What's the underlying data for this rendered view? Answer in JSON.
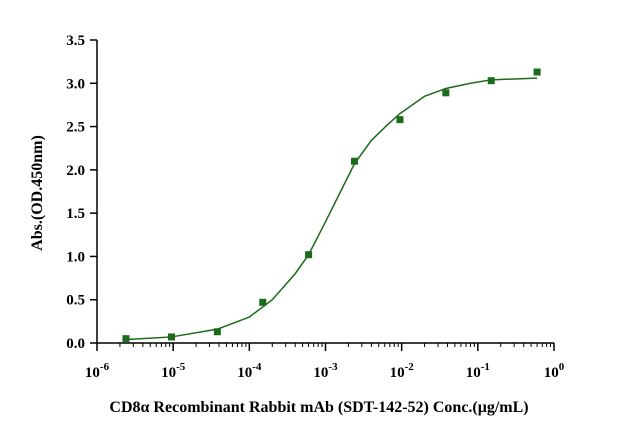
{
  "chart_data": {
    "type": "scatter",
    "xscale": "log",
    "xlabel": "CD8α Recombinant Rabbit mAb (SDT-142-52) Conc.(μg/mL)",
    "ylabel": "Abs.(OD.450nm)",
    "xlim": [
      1e-06,
      1
    ],
    "ylim": [
      0,
      3.5
    ],
    "x_ticks": [
      {
        "base": "10",
        "exp": "-6",
        "value": 1e-06
      },
      {
        "base": "10",
        "exp": "-5",
        "value": 1e-05
      },
      {
        "base": "10",
        "exp": "-4",
        "value": 0.0001
      },
      {
        "base": "10",
        "exp": "-3",
        "value": 0.001
      },
      {
        "base": "10",
        "exp": "-2",
        "value": 0.01
      },
      {
        "base": "10",
        "exp": "-1",
        "value": 0.1
      },
      {
        "base": "10",
        "exp": "0",
        "value": 1
      }
    ],
    "y_ticks": [
      "0.0",
      "0.5",
      "1.0",
      "1.5",
      "2.0",
      "2.5",
      "3.0",
      "3.5"
    ],
    "grid": false,
    "legend": "none",
    "color": "#1a6b1a",
    "points": [
      {
        "x": 2.4e-06,
        "y": 0.05
      },
      {
        "x": 9.5e-06,
        "y": 0.07
      },
      {
        "x": 3.8e-05,
        "y": 0.13
      },
      {
        "x": 0.00015,
        "y": 0.47
      },
      {
        "x": 0.0006,
        "y": 1.02
      },
      {
        "x": 0.0024,
        "y": 2.1
      },
      {
        "x": 0.0095,
        "y": 2.58
      },
      {
        "x": 0.038,
        "y": 2.89
      },
      {
        "x": 0.15,
        "y": 3.03
      },
      {
        "x": 0.6,
        "y": 3.13
      }
    ],
    "fit_curve": [
      {
        "x": 2.4e-06,
        "y": 0.04
      },
      {
        "x": 9.5e-06,
        "y": 0.07
      },
      {
        "x": 3.8e-05,
        "y": 0.16
      },
      {
        "x": 0.0001,
        "y": 0.3
      },
      {
        "x": 0.0002,
        "y": 0.5
      },
      {
        "x": 0.0004,
        "y": 0.8
      },
      {
        "x": 0.0006,
        "y": 1.02
      },
      {
        "x": 0.001,
        "y": 1.4
      },
      {
        "x": 0.0016,
        "y": 1.76
      },
      {
        "x": 0.0024,
        "y": 2.07
      },
      {
        "x": 0.004,
        "y": 2.34
      },
      {
        "x": 0.0065,
        "y": 2.52
      },
      {
        "x": 0.0095,
        "y": 2.65
      },
      {
        "x": 0.02,
        "y": 2.85
      },
      {
        "x": 0.038,
        "y": 2.94
      },
      {
        "x": 0.08,
        "y": 3.0
      },
      {
        "x": 0.15,
        "y": 3.04
      },
      {
        "x": 0.3,
        "y": 3.05
      },
      {
        "x": 0.6,
        "y": 3.06
      }
    ]
  }
}
